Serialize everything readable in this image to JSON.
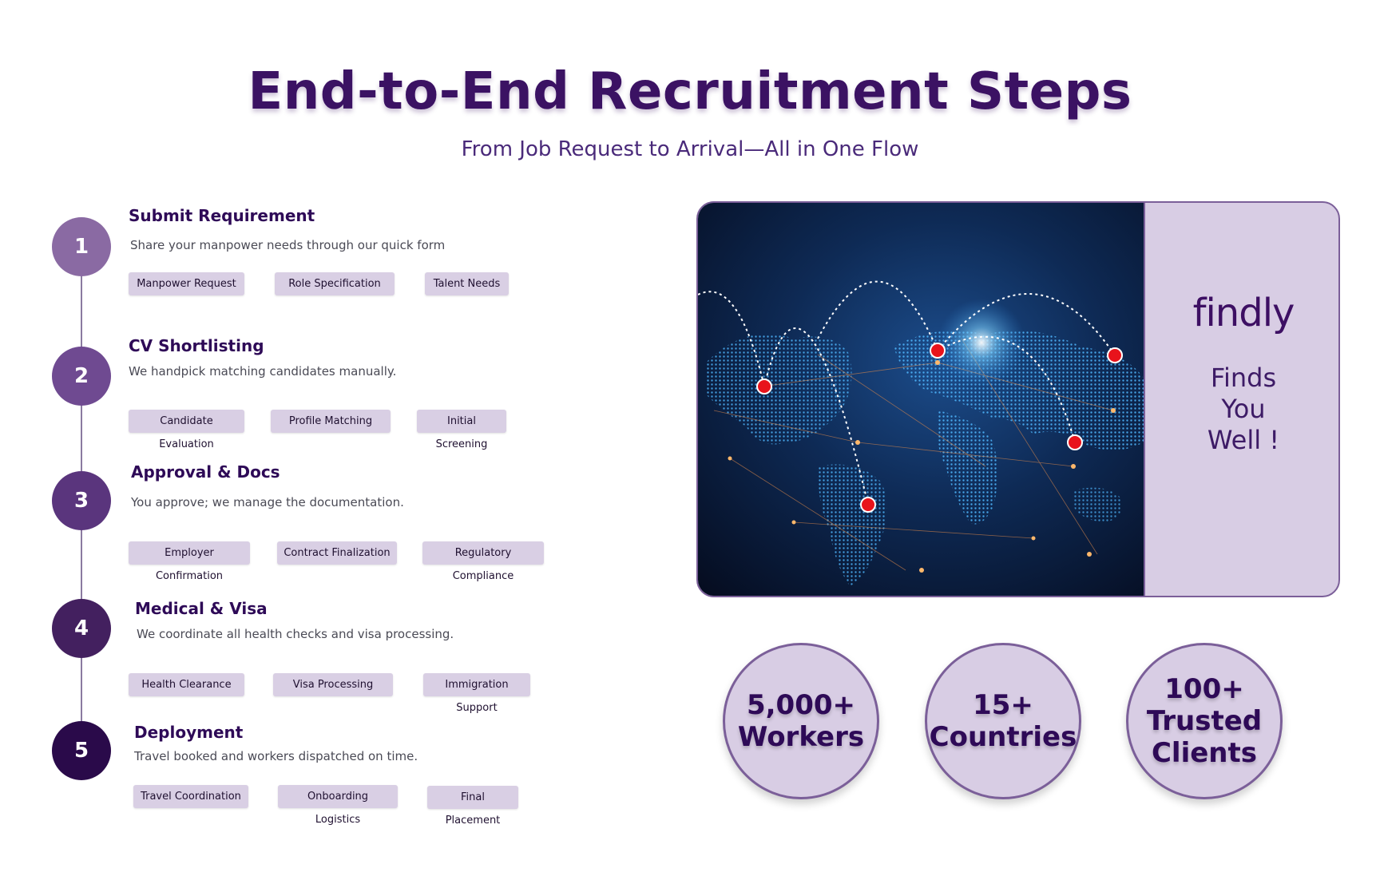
{
  "header": {
    "title": "End-to-End Recruitment Steps",
    "subtitle": "From Job Request to Arrival—All in One Flow"
  },
  "steps": [
    {
      "number": "1",
      "title": "Submit Requirement",
      "description": "Share your manpower needs through our quick form",
      "tags": [
        "Manpower Request",
        "Role Specification",
        "Talent Needs"
      ],
      "color": "#8a6aa3"
    },
    {
      "number": "2",
      "title": "CV Shortlisting",
      "description": "We handpick matching candidates manually.",
      "tags": [
        "Candidate Evaluation",
        "Profile Matching",
        "Initial Screening"
      ],
      "color": "#6f4a91"
    },
    {
      "number": "3",
      "title": "Approval & Docs",
      "description": "You approve; we manage the documentation.",
      "tags": [
        "Employer Confirmation",
        "Contract Finalization",
        "Regulatory Compliance"
      ],
      "color": "#5a357d"
    },
    {
      "number": "4",
      "title": "Medical & Visa",
      "description": "We coordinate all health checks and visa processing.",
      "tags": [
        "Health Clearance",
        "Visa Processing",
        "Immigration Support"
      ],
      "color": "#43205f"
    },
    {
      "number": "5",
      "title": "Deployment",
      "description": "Travel booked and workers dispatched on time.",
      "tags": [
        "Travel Coordination",
        "Onboarding Logistics",
        "Final Placement"
      ],
      "color": "#2a0a4a"
    }
  ],
  "brand_card": {
    "logo": "findly",
    "tagline": "Finds\nYou\nWell !",
    "image_icon": "world-network-map-icon"
  },
  "stats": [
    {
      "text": "5,000+\nWorkers"
    },
    {
      "text": "15+\nCountries"
    },
    {
      "text": "100+\nTrusted\nClients"
    }
  ],
  "colors": {
    "primary": "#3b1263",
    "tag_bg": "#d9cfe4",
    "card_bg": "#d8cde4",
    "border": "#7b5f99",
    "marker": "#e8131b"
  }
}
